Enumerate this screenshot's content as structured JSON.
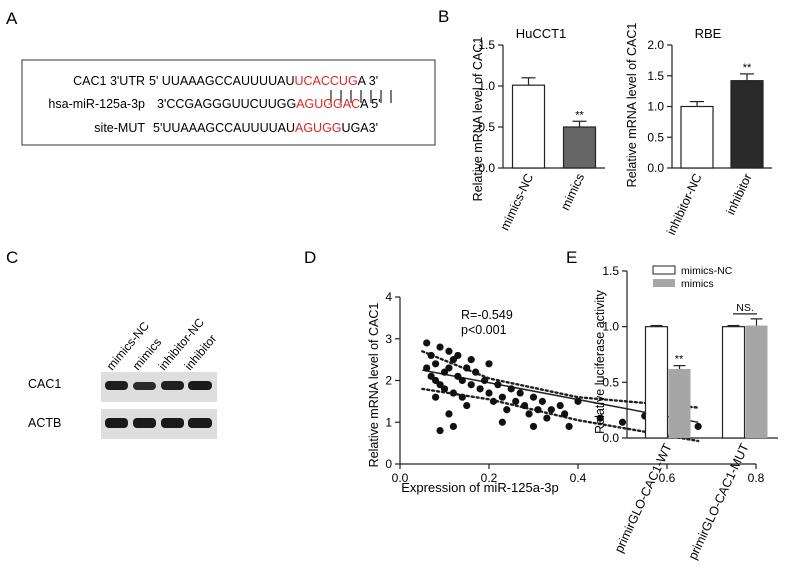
{
  "panel_letters": {
    "a": "A",
    "b": "B",
    "c": "C",
    "d": "D",
    "e": "E"
  },
  "panel_a": {
    "row1": {
      "label": "CAC1 3'UTR",
      "prefix": "5' UUAAAGCCAUUUUAU",
      "highlight": "UCACCUG",
      "suffix": "A 3'"
    },
    "row2": {
      "label": "hsa-miR-125a-3p",
      "prefix": "3'CCGAGGGUUCUUGG",
      "highlight": "AGUGGAC",
      "suffix": "A 5'"
    },
    "row3": {
      "label": "site-MUT",
      "prefix": "5'UUAAAGCCAUUUUAU",
      "highlight": "AGUGG",
      "suffix": "UGA3'"
    },
    "highlight_color": "#e0261f"
  },
  "panel_c": {
    "lanes": [
      "mimics-NC",
      "mimics",
      "inhibitor-NC",
      "inhibitor"
    ],
    "bands": [
      {
        "label": "CAC1"
      },
      {
        "label": "ACTB"
      }
    ]
  },
  "chart_data": [
    {
      "id": "b1",
      "type": "bar",
      "title": "HuCCT1",
      "ylabel": "Relative mRNA level of  CAC1",
      "ylim": [
        0,
        1.5
      ],
      "yticks": [
        "0.0",
        "0.5",
        "1.0",
        "1.5"
      ],
      "categories": [
        "mimics-NC",
        "mimics"
      ],
      "values": [
        1.01,
        0.5
      ],
      "errors": [
        0.09,
        0.07
      ],
      "colors": [
        "#ffffff",
        "#666666"
      ],
      "annotations": [
        "",
        "**"
      ]
    },
    {
      "id": "b2",
      "type": "bar",
      "title": "RBE",
      "ylabel": "Relative mRNA level of  CAC1",
      "ylim": [
        0,
        2.0
      ],
      "yticks": [
        "0.0",
        "0.5",
        "1.0",
        "1.5",
        "2.0"
      ],
      "categories": [
        "inhibitor-NC",
        "inhibitor"
      ],
      "values": [
        1.0,
        1.42
      ],
      "errors": [
        0.08,
        0.11
      ],
      "colors": [
        "#ffffff",
        "#2a2a2a"
      ],
      "annotations": [
        "",
        "**"
      ]
    },
    {
      "id": "d",
      "type": "scatter",
      "xlabel": "Expression of miR-125a-3p",
      "ylabel": "Relative mRNA level of  CAC1",
      "xlim": [
        0,
        0.8
      ],
      "ylim": [
        0,
        4
      ],
      "xticks": [
        "0.0",
        "0.2",
        "0.4",
        "0.6",
        "0.8"
      ],
      "yticks": [
        "0",
        "1",
        "2",
        "3",
        "4"
      ],
      "annotations": [
        "R=-0.549",
        "p<0.001"
      ],
      "fit": {
        "x": [
          0.05,
          0.67
        ],
        "y": [
          2.25,
          1.0
        ]
      },
      "ci_upper": {
        "x": [
          0.05,
          0.2,
          0.4,
          0.67
        ],
        "y": [
          2.7,
          2.05,
          1.6,
          1.35
        ]
      },
      "ci_lower": {
        "x": [
          0.05,
          0.2,
          0.4,
          0.67
        ],
        "y": [
          1.8,
          1.55,
          1.05,
          0.55
        ]
      },
      "points": [
        [
          0.06,
          2.9
        ],
        [
          0.07,
          2.6
        ],
        [
          0.08,
          2.4
        ],
        [
          0.07,
          2.1
        ],
        [
          0.08,
          2.0
        ],
        [
          0.09,
          1.9
        ],
        [
          0.1,
          2.2
        ],
        [
          0.09,
          2.8
        ],
        [
          0.11,
          2.7
        ],
        [
          0.12,
          2.5
        ],
        [
          0.11,
          2.3
        ],
        [
          0.13,
          2.1
        ],
        [
          0.1,
          1.8
        ],
        [
          0.12,
          1.7
        ],
        [
          0.14,
          2.0
        ],
        [
          0.13,
          2.6
        ],
        [
          0.15,
          2.3
        ],
        [
          0.16,
          1.9
        ],
        [
          0.14,
          1.6
        ],
        [
          0.17,
          2.2
        ],
        [
          0.18,
          1.8
        ],
        [
          0.19,
          2.0
        ],
        [
          0.2,
          1.7
        ],
        [
          0.15,
          1.4
        ],
        [
          0.11,
          1.2
        ],
        [
          0.09,
          0.8
        ],
        [
          0.12,
          0.9
        ],
        [
          0.21,
          1.5
        ],
        [
          0.22,
          1.9
        ],
        [
          0.23,
          1.6
        ],
        [
          0.24,
          1.3
        ],
        [
          0.25,
          1.8
        ],
        [
          0.26,
          1.5
        ],
        [
          0.27,
          1.7
        ],
        [
          0.28,
          1.4
        ],
        [
          0.29,
          1.2
        ],
        [
          0.3,
          1.6
        ],
        [
          0.31,
          1.3
        ],
        [
          0.32,
          1.5
        ],
        [
          0.33,
          1.1
        ],
        [
          0.34,
          1.3
        ],
        [
          0.36,
          1.4
        ],
        [
          0.37,
          1.2
        ],
        [
          0.38,
          0.9
        ],
        [
          0.4,
          1.5
        ],
        [
          0.45,
          1.1
        ],
        [
          0.5,
          1.0
        ],
        [
          0.55,
          1.15
        ],
        [
          0.62,
          1.3
        ],
        [
          0.67,
          0.9
        ],
        [
          0.06,
          2.3
        ],
        [
          0.08,
          1.6
        ],
        [
          0.16,
          2.5
        ],
        [
          0.2,
          2.4
        ],
        [
          0.23,
          1.0
        ],
        [
          0.3,
          0.9
        ]
      ]
    },
    {
      "id": "e",
      "type": "bar",
      "ylabel": "Relative  luciferase activity",
      "ylim": [
        0,
        1.5
      ],
      "yticks": [
        "0.0",
        "0.5",
        "1.0",
        "1.5"
      ],
      "categories": [
        "primirGLO-CAC1-WT",
        "primirGLO-CAC1-MUT"
      ],
      "series": [
        {
          "name": "mimics-NC",
          "values": [
            1.0,
            1.0
          ],
          "errors": [
            0.01,
            0.01
          ],
          "color": "#ffffff"
        },
        {
          "name": "mimics",
          "values": [
            0.62,
            1.01
          ],
          "errors": [
            0.03,
            0.06
          ],
          "color": "#a6a6a6"
        }
      ],
      "annotations": [
        "**",
        "NS."
      ],
      "legend": "top-left"
    }
  ]
}
